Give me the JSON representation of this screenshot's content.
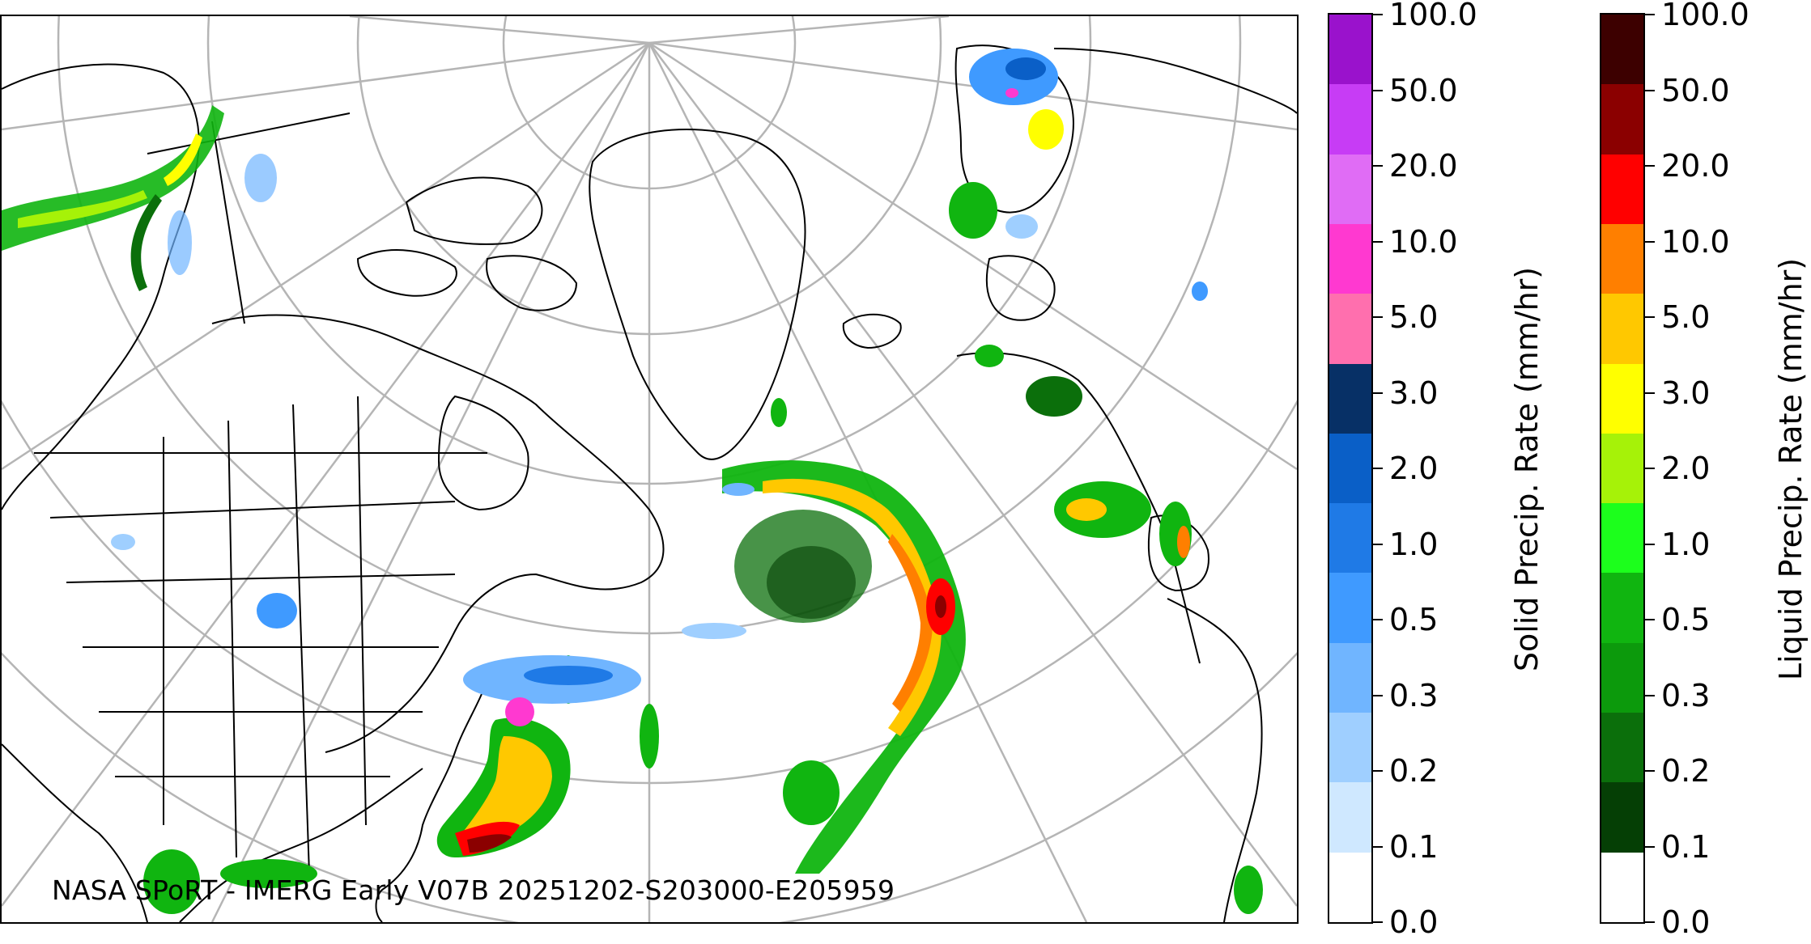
{
  "map": {
    "credit": "NASA SPoRT - IMERG Early V07B 20251202-S203000-E205959"
  },
  "solid_colorbar": {
    "title": "Solid Precip. Rate (mm/hr)",
    "ticks": [
      "0.0",
      "0.1",
      "0.2",
      "0.3",
      "0.5",
      "1.0",
      "2.0",
      "3.0",
      "5.0",
      "10.0",
      "20.0",
      "50.0",
      "100.0"
    ],
    "colors": [
      "#ffffff",
      "#cfe8ff",
      "#9fcfff",
      "#70b5ff",
      "#3f9aff",
      "#1f7ae6",
      "#0a5fc7",
      "#073066",
      "#ff6fae",
      "#ff39d0",
      "#e06cf5",
      "#c73cf5",
      "#9a12cc"
    ]
  },
  "liquid_colorbar": {
    "title": "Liquid Precip. Rate (mm/hr)",
    "ticks": [
      "0.0",
      "0.1",
      "0.2",
      "0.3",
      "0.5",
      "1.0",
      "2.0",
      "3.0",
      "5.0",
      "10.0",
      "20.0",
      "50.0",
      "100.0"
    ],
    "colors": [
      "#ffffff",
      "#053f05",
      "#0b6f0b",
      "#0c9a0c",
      "#10b510",
      "#1cff1c",
      "#a6f208",
      "#ffff00",
      "#ffc800",
      "#ff7f00",
      "#ff0000",
      "#8b0000",
      "#3d0000"
    ]
  }
}
